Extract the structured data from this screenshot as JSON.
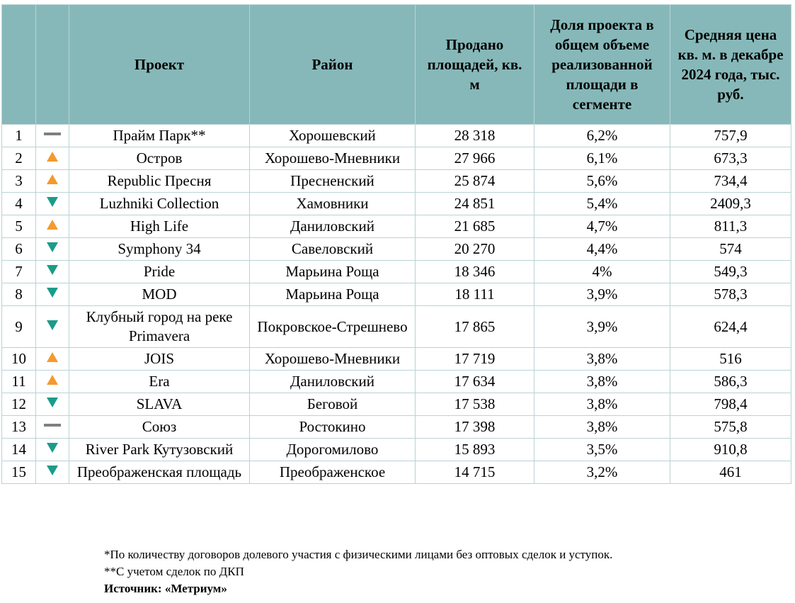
{
  "table": {
    "headers": [
      "Проект",
      "Район",
      "Продано площадей, кв. м",
      "Доля проекта в общем объеме реализованной площади в сегменте",
      "Средняя цена кв. м. в декабре 2024 года, тыс. руб."
    ],
    "rows": [
      [
        "1",
        "same",
        "Прайм Парк**",
        "Хорошевский",
        "28 318",
        "6,2%",
        "757,9"
      ],
      [
        "2",
        "up",
        "Остров",
        "Хорошево-Мневники",
        "27 966",
        "6,1%",
        "673,3"
      ],
      [
        "3",
        "up",
        "Republic Пресня",
        "Пресненский",
        "25 874",
        "5,6%",
        "734,4"
      ],
      [
        "4",
        "down",
        "Luzhniki Collection",
        "Хамовники",
        "24 851",
        "5,4%",
        "2409,3"
      ],
      [
        "5",
        "up",
        "High Life",
        "Даниловский",
        "21 685",
        "4,7%",
        "811,3"
      ],
      [
        "6",
        "down",
        "Symphony 34",
        "Савеловский",
        "20 270",
        "4,4%",
        "574"
      ],
      [
        "7",
        "down",
        "Pride",
        "Марьина Роща",
        "18 346",
        "4%",
        "549,3"
      ],
      [
        "8",
        "down",
        "MOD",
        "Марьина Роща",
        "18 111",
        "3,9%",
        "578,3"
      ],
      [
        "9",
        "down",
        "Клубный город на реке Primavera",
        "Покровское-Стрешнево",
        "17 865",
        "3,9%",
        "624,4"
      ],
      [
        "10",
        "up",
        "JOIS",
        "Хорошево-Мневники",
        "17 719",
        "3,8%",
        "516"
      ],
      [
        "11",
        "up",
        "Era",
        "Даниловский",
        "17 634",
        "3,8%",
        "586,3"
      ],
      [
        "12",
        "down",
        "SLAVA",
        "Беговой",
        "17 538",
        "3,8%",
        "798,4"
      ],
      [
        "13",
        "same",
        "Союз",
        "Ростокино",
        "17 398",
        "3,8%",
        "575,8"
      ],
      [
        "14",
        "down",
        "River Park Кутузовский",
        "Дорогомилово",
        "15 893",
        "3,5%",
        "910,8"
      ],
      [
        "15",
        "down",
        "Преображенская площадь",
        "Преображенское",
        "14 715",
        "3,2%",
        "461"
      ]
    ]
  },
  "footnotes": [
    "*По количеству договоров долевого участия с физическими лицами без оптовых сделок и уступок.",
    "**С учетом сделок по ДКП",
    "Источник: «Метриум»"
  ]
}
